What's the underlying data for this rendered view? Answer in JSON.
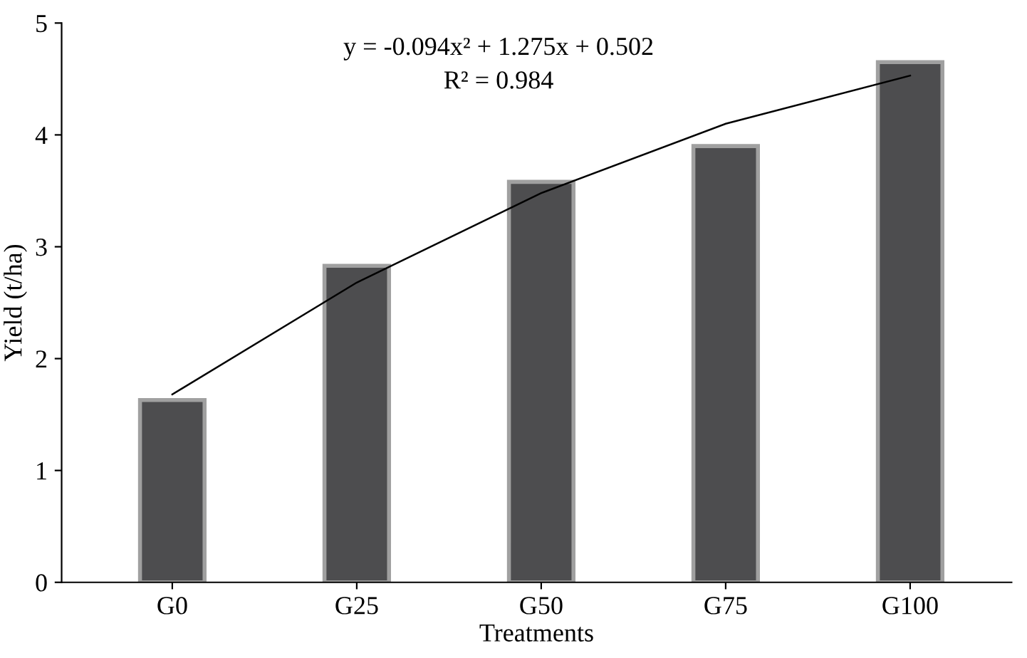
{
  "chart_data": {
    "type": "bar",
    "xlabel": "Treatments",
    "ylabel": "Yield (t/ha)",
    "categories": [
      "G0",
      "G25",
      "G50",
      "G75",
      "G100"
    ],
    "series": [
      {
        "color": "#4d4d4f",
        "values": [
          1.63,
          2.83,
          3.58,
          3.9,
          4.65
        ]
      },
      {
        "type": "line",
        "color": "#000000",
        "values": [
          1.68,
          2.68,
          3.48,
          4.1,
          4.53
        ]
      }
    ],
    "annotations": [
      {
        "text": "y = -0.094x² + 1.275x + 0.502"
      },
      {
        "text": "R² = 0.984"
      }
    ],
    "ylim": [
      0,
      5
    ],
    "yticks": [
      0,
      1,
      2,
      3,
      4,
      5
    ],
    "grid": false,
    "legend": false
  }
}
